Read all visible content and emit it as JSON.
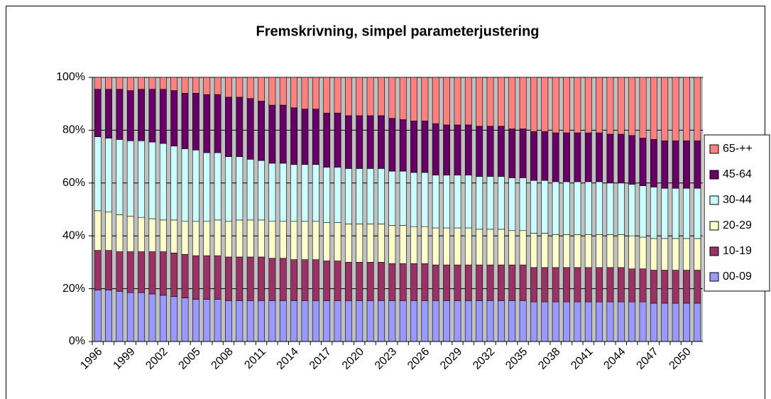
{
  "chart_data": {
    "type": "stacked_bar",
    "title": "Fremskrivning, simpel parameterjustering",
    "categories": [
      "1996",
      null,
      null,
      "1999",
      null,
      null,
      "2002",
      null,
      null,
      "2005",
      null,
      null,
      "2008",
      null,
      null,
      "2011",
      null,
      null,
      "2014",
      null,
      null,
      "2017",
      null,
      null,
      "2020",
      null,
      null,
      "2023",
      null,
      null,
      "2026",
      null,
      null,
      "2029",
      null,
      null,
      "2032",
      null,
      null,
      "2035",
      null,
      null,
      "2038",
      null,
      null,
      "2041",
      null,
      null,
      "2044",
      null,
      null,
      "2047",
      null,
      null,
      "2050",
      null
    ],
    "series": [
      {
        "name": "00-09",
        "color": "#9999ff",
        "values": [
          19.5,
          19.5,
          19,
          18.5,
          18.5,
          18,
          17.5,
          17,
          16.5,
          16,
          16,
          16,
          15.5,
          15.5,
          15.5,
          15.5,
          15.5,
          15.5,
          15.5,
          15.5,
          15.5,
          15.5,
          15.5,
          15.5,
          15.5,
          15.5,
          15.5,
          15.5,
          15.5,
          15.5,
          15.5,
          15.5,
          15.5,
          15.5,
          15.5,
          15.5,
          15.5,
          15.5,
          15.5,
          15.5,
          15,
          15,
          15,
          15,
          15,
          15,
          15,
          15,
          15,
          15,
          15,
          14.5,
          14.5,
          14.5,
          14.5,
          14.5
        ]
      },
      {
        "name": "10-19",
        "color": "#993366",
        "values": [
          15,
          15,
          15,
          15.5,
          15.5,
          16,
          16.5,
          16.5,
          16.5,
          16.5,
          16.5,
          16.5,
          16.5,
          16.5,
          16.5,
          16.5,
          16,
          16,
          15.5,
          15.5,
          15.5,
          15,
          15,
          14.5,
          14.5,
          14.5,
          14.5,
          14,
          14,
          14,
          14,
          13.5,
          13.5,
          13.5,
          13.5,
          13.5,
          13.5,
          13.5,
          13.5,
          13.5,
          13,
          13,
          13,
          13,
          13,
          13,
          13,
          13,
          13,
          12.5,
          12.5,
          12.5,
          12.5,
          12.5,
          12.5,
          12.5
        ]
      },
      {
        "name": "20-29",
        "color": "#ffffcc",
        "values": [
          15,
          14.5,
          14,
          13.5,
          13,
          12.5,
          12,
          12.5,
          12.5,
          13,
          13,
          13.5,
          13.5,
          14,
          14,
          14,
          14,
          14,
          14.5,
          14.5,
          14.5,
          14.5,
          14.5,
          14.5,
          14.5,
          14.5,
          14.5,
          14.5,
          14.5,
          14,
          14,
          14,
          14,
          14,
          14,
          13.5,
          13.5,
          13.5,
          13,
          13,
          13,
          13,
          12.5,
          12.5,
          12.5,
          12.5,
          12.5,
          12.5,
          12.5,
          12.5,
          12,
          12,
          12,
          12,
          12,
          12
        ]
      },
      {
        "name": "30-44",
        "color": "#ccffff",
        "values": [
          28,
          28,
          28.5,
          28.5,
          29,
          29,
          29,
          28,
          27.5,
          27,
          26,
          25.5,
          24.5,
          24,
          23,
          22.5,
          22,
          22,
          21.5,
          21.5,
          21.5,
          21,
          21,
          21,
          21,
          21,
          21,
          20.5,
          20.5,
          20.5,
          20.5,
          20,
          20,
          20,
          20,
          20,
          20,
          20,
          20,
          20,
          20,
          20,
          20,
          20,
          20,
          20,
          20,
          19.5,
          19.5,
          19.5,
          19.5,
          19.5,
          19,
          19,
          19,
          19
        ]
      },
      {
        "name": "45-64",
        "color": "#660066",
        "values": [
          18,
          18.5,
          19,
          19,
          19.5,
          20,
          20.5,
          21,
          21,
          21.5,
          22,
          22,
          22.5,
          22.5,
          23,
          22.5,
          22,
          22,
          21.5,
          21,
          21,
          20.5,
          20.5,
          20,
          20,
          20,
          20,
          20,
          19.5,
          19.5,
          19.5,
          19.5,
          19,
          19,
          19,
          19,
          19,
          19,
          18.5,
          18.5,
          18.5,
          18.5,
          18.5,
          18.5,
          18.5,
          18.5,
          18.5,
          18.5,
          18.5,
          18.5,
          18,
          18,
          18,
          18,
          18,
          18
        ]
      },
      {
        "name": "65-++",
        "color": "#ff8080",
        "values": [
          4.5,
          4.5,
          4.5,
          5,
          4.5,
          4.5,
          4.5,
          5,
          6,
          6,
          6.5,
          6.5,
          7.5,
          7.5,
          8,
          9,
          10.5,
          10.5,
          11.5,
          12,
          12,
          13.5,
          13.5,
          14.5,
          14.5,
          14.5,
          14.5,
          15.5,
          16,
          16.5,
          16.5,
          17.5,
          18,
          18,
          18,
          18.5,
          18.5,
          18.5,
          19.5,
          19.5,
          20.5,
          20.5,
          21,
          21,
          21,
          21,
          21,
          21.5,
          21.5,
          22,
          23,
          23.5,
          24,
          24,
          24,
          24
        ]
      }
    ],
    "ylim": [
      0,
      100
    ],
    "yticks": [
      {
        "value": 0,
        "label": "0%"
      },
      {
        "value": 20,
        "label": "20%"
      },
      {
        "value": 40,
        "label": "40%"
      },
      {
        "value": 60,
        "label": "60%"
      },
      {
        "value": 80,
        "label": "80%"
      },
      {
        "value": 100,
        "label": "100%"
      }
    ],
    "grid": true,
    "legend": "right"
  }
}
